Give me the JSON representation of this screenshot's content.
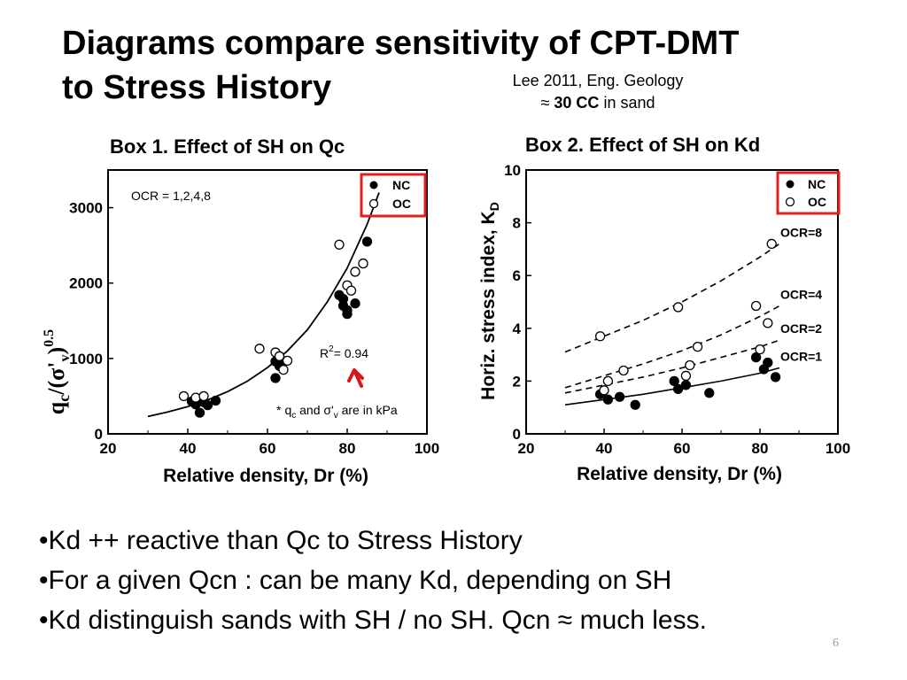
{
  "slide": {
    "title_line1": "Diagrams compare sensitivity of CPT-DMT",
    "title_line2": "to Stress History",
    "reference_line1": "Lee 2011, Eng. Geology",
    "reference_approx": "≈",
    "reference_bold": "30 CC",
    "reference_rest": " in sand",
    "bullets": [
      "•Kd ++ reactive than Qc to Stress History",
      "•For a given Qcn : can be many Kd, depending on SH",
      "•Kd distinguish sands with SH / no SH. Qcn ≈ much less."
    ],
    "page_number": "6"
  },
  "colors": {
    "highlight_box": "#e02020",
    "arrow": "#d81818",
    "marker": "#000000"
  },
  "chart_data": [
    {
      "type": "scatter",
      "title": "Box 1. Effect of SH on  Qc",
      "xlabel_main": "Relative density, D",
      "xlabel_sub": "r",
      "xlabel_unit": " (%)",
      "ylabel_q": "q",
      "ylabel_c": "c",
      "ylabel_mid": "/(σ'",
      "ylabel_v": "v",
      "ylabel_close": ")",
      "ylabel_exp": "0.5",
      "xlim": [
        20,
        100
      ],
      "ylim": [
        0,
        3500
      ],
      "xticks": [
        20,
        40,
        60,
        80,
        100
      ],
      "yticks": [
        0,
        1000,
        2000,
        3000
      ],
      "legend": {
        "position": "top-right",
        "items": [
          {
            "label": "NC",
            "marker": "filled"
          },
          {
            "label": "OC",
            "marker": "open"
          }
        ]
      },
      "annotation_ocr": "OCR = 1,2,4,8",
      "r2_label": "R",
      "r2_exp": "2",
      "r2_value": "= 0.94",
      "units_note_star": "*",
      "units_note_q": "q",
      "units_note_c": "c",
      "units_note_and": " and ",
      "units_note_sigma": "σ'",
      "units_note_v": "v",
      "units_note_end": " are in kPa",
      "fit_curve": {
        "x": [
          30,
          35,
          40,
          45,
          50,
          55,
          60,
          65,
          70,
          75,
          80,
          85,
          88
        ],
        "y": [
          230,
          290,
          360,
          450,
          560,
          700,
          880,
          1100,
          1380,
          1750,
          2200,
          2780,
          3200
        ]
      },
      "series": [
        {
          "name": "NC",
          "marker": "filled",
          "x": [
            41,
            42,
            43,
            44,
            45,
            47,
            62,
            63,
            62,
            63,
            78,
            79,
            79,
            80,
            80,
            82,
            85
          ],
          "y": [
            430,
            390,
            280,
            420,
            380,
            440,
            740,
            1000,
            960,
            900,
            1840,
            1790,
            1700,
            1640,
            1590,
            1730,
            2550
          ]
        },
        {
          "name": "OC",
          "marker": "open",
          "x": [
            39,
            42,
            44,
            58,
            62,
            63,
            64,
            65,
            78,
            80,
            81,
            82,
            84
          ],
          "y": [
            500,
            480,
            500,
            1130,
            1080,
            1030,
            850,
            970,
            2510,
            1970,
            1900,
            2150,
            2260
          ]
        }
      ]
    },
    {
      "type": "scatter",
      "title": "Box 2. Effect of SH on Kd",
      "xlabel_main": "Relative density, D",
      "xlabel_sub": "r",
      "xlabel_unit": " (%)",
      "ylabel_main": "Horiz.  stress index, K",
      "ylabel_sub": "D",
      "xlim": [
        20,
        100
      ],
      "ylim": [
        0,
        10
      ],
      "xticks": [
        20,
        40,
        60,
        80,
        100
      ],
      "yticks": [
        0,
        2,
        4,
        6,
        8,
        10
      ],
      "legend": {
        "position": "top-right",
        "items": [
          {
            "label": "NC",
            "marker": "filled"
          },
          {
            "label": "OC",
            "marker": "open"
          }
        ]
      },
      "curves": [
        {
          "label": "OCR=8",
          "style": "dashed",
          "x": [
            30,
            40,
            50,
            60,
            70,
            80,
            85
          ],
          "y": [
            3.1,
            3.7,
            4.3,
            5.0,
            5.8,
            6.7,
            7.2
          ]
        },
        {
          "label": "OCR=4",
          "style": "dashed",
          "x": [
            30,
            40,
            50,
            60,
            70,
            80,
            85
          ],
          "y": [
            1.75,
            2.2,
            2.65,
            3.15,
            3.75,
            4.45,
            4.85
          ]
        },
        {
          "label": "OCR=2",
          "style": "dashed",
          "x": [
            30,
            40,
            50,
            60,
            70,
            80,
            85
          ],
          "y": [
            1.55,
            1.85,
            2.15,
            2.5,
            2.9,
            3.3,
            3.55
          ]
        },
        {
          "label": "OCR=1",
          "style": "solid",
          "x": [
            30,
            40,
            50,
            60,
            70,
            80,
            85
          ],
          "y": [
            1.1,
            1.3,
            1.5,
            1.75,
            2.0,
            2.3,
            2.5
          ]
        }
      ],
      "series": [
        {
          "name": "NC",
          "marker": "filled",
          "x": [
            39,
            41,
            44,
            48,
            58,
            59,
            61,
            67,
            79,
            81,
            82,
            84
          ],
          "y": [
            1.5,
            1.3,
            1.4,
            1.1,
            2.0,
            1.7,
            1.85,
            1.55,
            2.9,
            2.45,
            2.7,
            2.15
          ]
        },
        {
          "name": "OC",
          "marker": "open",
          "x": [
            39,
            40,
            41,
            45,
            59,
            61,
            62,
            64,
            79,
            80,
            82,
            83
          ],
          "y": [
            3.7,
            1.65,
            2.0,
            2.4,
            4.8,
            2.2,
            2.6,
            3.3,
            4.85,
            3.2,
            4.2,
            7.2
          ]
        }
      ]
    }
  ]
}
